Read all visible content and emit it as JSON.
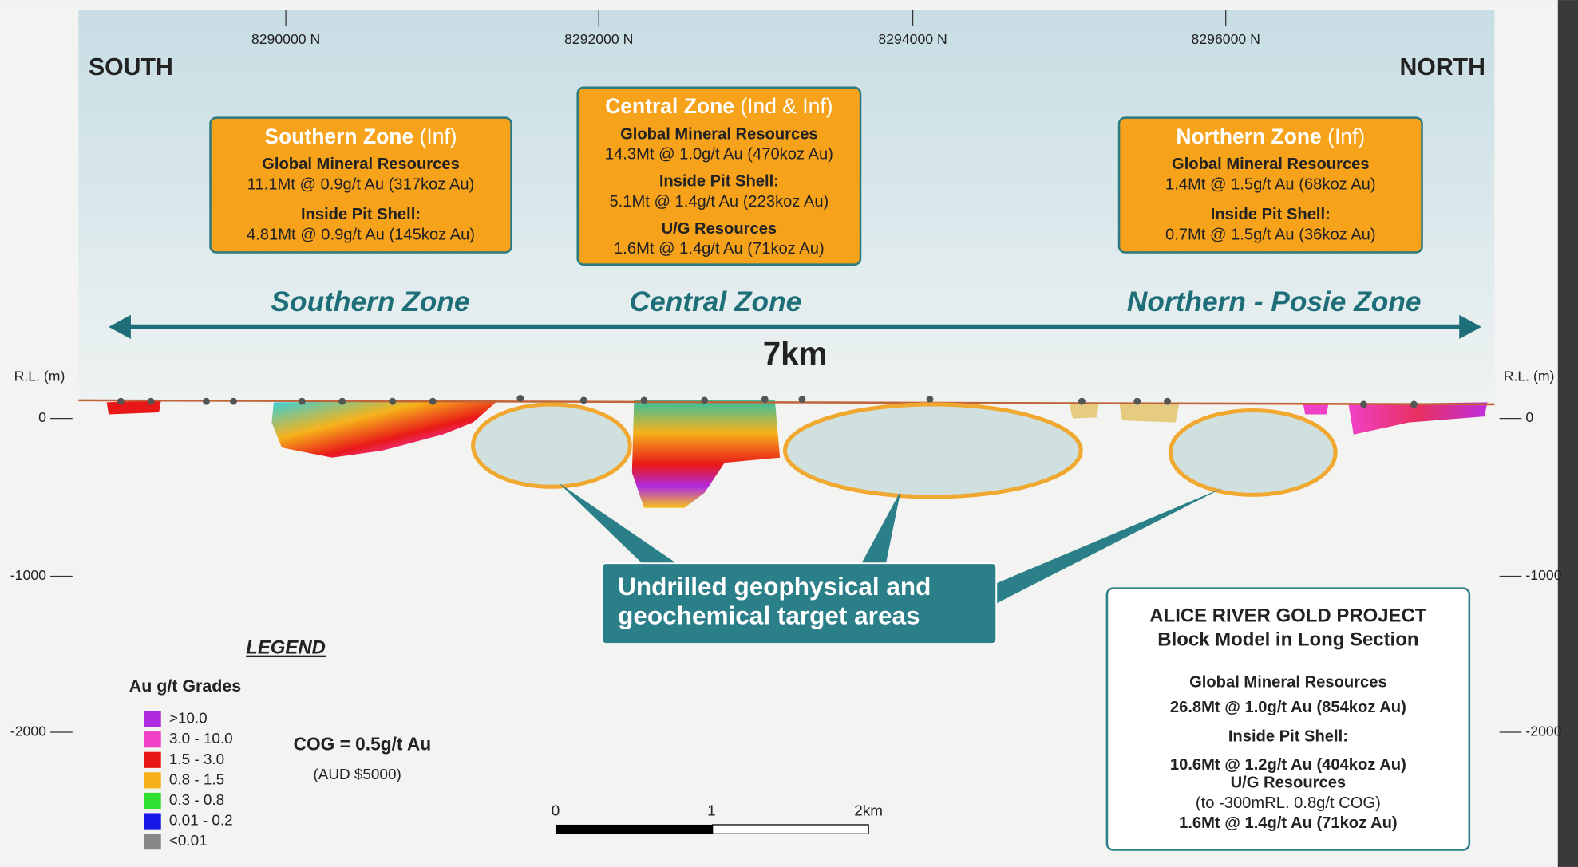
{
  "northings": [
    "8290000 N",
    "8292000 N",
    "8294000 N",
    "8296000 N"
  ],
  "directions": {
    "south": "SOUTH",
    "north": "NORTH"
  },
  "zone_boxes": [
    {
      "title": "Southern Zone",
      "qualifier": "(Inf)",
      "sections": [
        {
          "heading": "Global Mineral Resources",
          "value": "11.1Mt @ 0.9g/t Au (317koz Au)"
        },
        {
          "heading": "Inside Pit Shell:",
          "value": "4.81Mt @ 0.9g/t Au (145koz Au)"
        }
      ]
    },
    {
      "title": "Central Zone",
      "qualifier": "(Ind & Inf)",
      "sections": [
        {
          "heading": "Global Mineral Resources",
          "value": "14.3Mt @ 1.0g/t Au (470koz Au)"
        },
        {
          "heading": "Inside Pit Shell:",
          "value": "5.1Mt @ 1.4g/t Au (223koz Au)"
        },
        {
          "heading": "U/G Resources",
          "value": "1.6Mt @ 1.4g/t Au (71koz Au)"
        }
      ]
    },
    {
      "title": "Northern Zone",
      "qualifier": "(Inf)",
      "sections": [
        {
          "heading": "Global Mineral Resources",
          "value": "1.4Mt @ 1.5g/t Au (68koz Au)"
        },
        {
          "heading": "Inside Pit Shell:",
          "value": "0.7Mt @ 1.5g/t Au (36koz Au)"
        }
      ]
    }
  ],
  "zone_labels": [
    "Southern Zone",
    "Central Zone",
    "Northern - Posie Zone"
  ],
  "distance": "7km",
  "rl_label": "R.L. (m)",
  "rl_ticks": [
    "0",
    "-1000",
    "-2000"
  ],
  "callout": [
    "Undrilled geophysical and",
    "geochemical target areas"
  ],
  "legend": {
    "title": "LEGEND",
    "subtitle": "Au g/t Grades",
    "items": [
      {
        "label": ">10.0",
        "color": "#b02be0"
      },
      {
        "label": "3.0 - 10.0",
        "color": "#f040c8"
      },
      {
        "label": "1.5 - 3.0",
        "color": "#e81818"
      },
      {
        "label": "0.8 - 1.5",
        "color": "#f7b21b"
      },
      {
        "label": "0.3 - 0.8",
        "color": "#30e030"
      },
      {
        "label": "0.01 - 0.2",
        "color": "#1818e8"
      },
      {
        "label": "<0.01",
        "color": "#888888"
      }
    ]
  },
  "cog": {
    "text": "COG = 0.5g/t Au",
    "note": "(AUD $5000)"
  },
  "scale_bar": [
    "0",
    "1",
    "2km"
  ],
  "project": {
    "title": [
      "ALICE RIVER GOLD PROJECT",
      "Block Model in Long Section"
    ],
    "sections": [
      {
        "heading": "Global Mineral Resources",
        "value": "26.8Mt @ 1.0g/t Au (854koz Au)"
      },
      {
        "heading": "Inside Pit Shell:",
        "value": "10.6Mt @ 1.2g/t Au (404koz Au)"
      },
      {
        "heading": "U/G Resources",
        "note": "(to -300mRL. 0.8g/t COG)",
        "value": "1.6Mt @ 1.4g/t Au (71koz Au)"
      }
    ]
  }
}
